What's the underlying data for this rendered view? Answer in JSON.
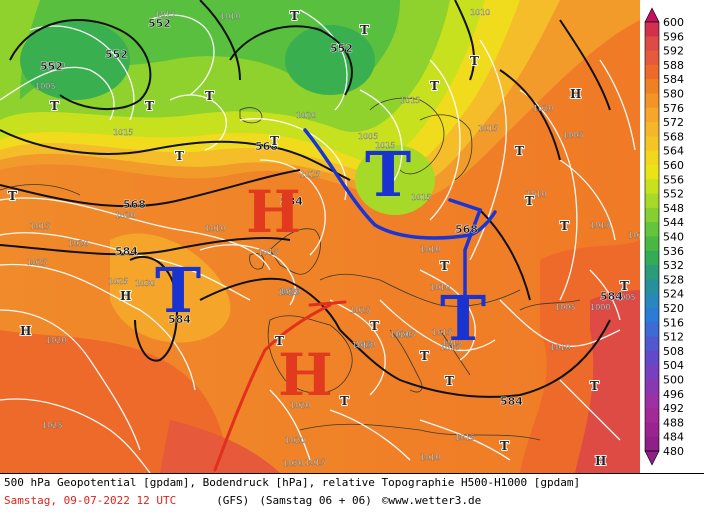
{
  "footer": {
    "line1": "500 hPa Geopotential [gpdam], Bodendruck [hPa], relative Topographie H500-H1000 [gpdam]",
    "date": "Samstag, 09-07-2022  12 UTC",
    "model": "(GFS)",
    "run": "(Samstag 06 + 06)",
    "credit": "©www.wetter3.de"
  },
  "legend": {
    "values": [
      "600",
      "596",
      "592",
      "588",
      "584",
      "580",
      "576",
      "572",
      "568",
      "564",
      "560",
      "556",
      "552",
      "548",
      "544",
      "540",
      "536",
      "532",
      "528",
      "524",
      "520",
      "516",
      "512",
      "508",
      "504",
      "500",
      "496",
      "492",
      "488",
      "484",
      "480"
    ],
    "colors": [
      "#c2125f",
      "#d2314e",
      "#de4a44",
      "#e6593a",
      "#ed6a2a",
      "#f08024",
      "#f49427",
      "#f6a62a",
      "#f6b629",
      "#f4c624",
      "#f2d81c",
      "#eae416",
      "#c7e11d",
      "#a7d928",
      "#86cf30",
      "#64c43b",
      "#49b842",
      "#34ab56",
      "#2a9d78",
      "#27919b",
      "#2887bd",
      "#2c7bd6",
      "#3d6ad4",
      "#5058cf",
      "#6348c9",
      "#7840bf",
      "#8a38b2",
      "#9c30a4",
      "#a32898",
      "#9a2390",
      "#902088"
    ]
  },
  "map_labels": {
    "highs": [
      {
        "text": "H",
        "color": "#e23a1f"
      },
      {
        "text": "H",
        "color": "#e23a1f"
      }
    ],
    "lows": [
      {
        "text": "T",
        "color": "#1833d0"
      },
      {
        "text": "T",
        "color": "#1833d0"
      },
      {
        "text": "T",
        "color": "#1833d0"
      }
    ],
    "geo_labels": [
      "552",
      "552",
      "552",
      "552",
      "568",
      "568",
      "584",
      "584",
      "584",
      "584",
      "584",
      "568"
    ],
    "pressure_labels": [
      "1015",
      "1010",
      "1005",
      "1010",
      "1015",
      "1020",
      "1025",
      "1020",
      "1015",
      "1010",
      "1015",
      "1020",
      "1025",
      "1030",
      "1025",
      "1020",
      "1015",
      "1015",
      "1015",
      "1010",
      "1015",
      "1020",
      "1005",
      "1015",
      "1010",
      "1015",
      "1020",
      "1030",
      "1025",
      "1020",
      "1015",
      "1015",
      "1010",
      "1005",
      "1005",
      "1000",
      "1010",
      "1020",
      "1015",
      "1020",
      "1020",
      "1025",
      "1030",
      "1015",
      "1025",
      "1010",
      "1005",
      "1015",
      "1015",
      "1010"
    ]
  }
}
